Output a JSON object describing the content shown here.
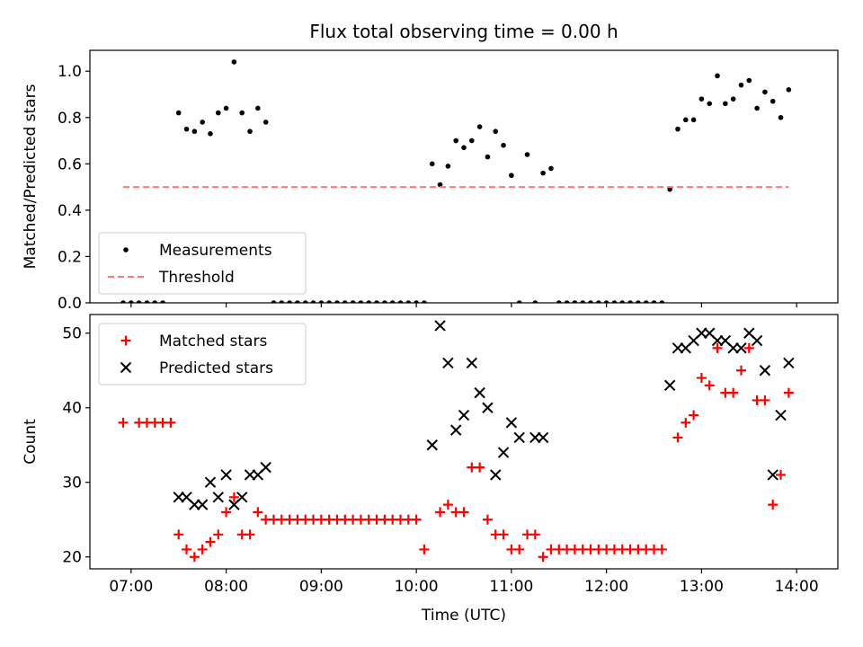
{
  "chart_data": [
    {
      "type": "scatter",
      "title": "Flux total observing time = 0.00 h",
      "xlabel": "",
      "ylabel": "Matched/Predicted stars",
      "ylim": [
        0,
        1.09
      ],
      "xlim": [
        "06:34",
        "14:26"
      ],
      "legend_position": "lower-left",
      "yticks": [
        "0.0",
        "0.2",
        "0.4",
        "0.6",
        "0.8",
        "1.0"
      ],
      "series": [
        {
          "name": "Measurements",
          "marker": "dot",
          "color": "#000000",
          "points": [
            [
              "06:55",
              0.0
            ],
            [
              "07:00",
              0.0
            ],
            [
              "07:05",
              0.0
            ],
            [
              "07:10",
              0.0
            ],
            [
              "07:15",
              0.0
            ],
            [
              "07:20",
              0.0
            ],
            [
              "07:30",
              0.82
            ],
            [
              "07:35",
              0.75
            ],
            [
              "07:40",
              0.74
            ],
            [
              "07:45",
              0.78
            ],
            [
              "07:50",
              0.73
            ],
            [
              "07:55",
              0.82
            ],
            [
              "08:00",
              0.84
            ],
            [
              "08:05",
              1.04
            ],
            [
              "08:10",
              0.82
            ],
            [
              "08:15",
              0.74
            ],
            [
              "08:20",
              0.84
            ],
            [
              "08:25",
              0.78
            ],
            [
              "08:30",
              0.0
            ],
            [
              "08:35",
              0.0
            ],
            [
              "08:40",
              0.0
            ],
            [
              "08:45",
              0.0
            ],
            [
              "08:50",
              0.0
            ],
            [
              "08:55",
              0.0
            ],
            [
              "09:00",
              0.0
            ],
            [
              "09:05",
              0.0
            ],
            [
              "09:10",
              0.0
            ],
            [
              "09:15",
              0.0
            ],
            [
              "09:20",
              0.0
            ],
            [
              "09:25",
              0.0
            ],
            [
              "09:30",
              0.0
            ],
            [
              "09:35",
              0.0
            ],
            [
              "09:40",
              0.0
            ],
            [
              "09:45",
              0.0
            ],
            [
              "09:50",
              0.0
            ],
            [
              "09:55",
              0.0
            ],
            [
              "10:00",
              0.0
            ],
            [
              "10:05",
              0.0
            ],
            [
              "10:10",
              0.6
            ],
            [
              "10:15",
              0.51
            ],
            [
              "10:20",
              0.59
            ],
            [
              "10:25",
              0.7
            ],
            [
              "10:30",
              0.67
            ],
            [
              "10:35",
              0.7
            ],
            [
              "10:40",
              0.76
            ],
            [
              "10:45",
              0.63
            ],
            [
              "10:50",
              0.74
            ],
            [
              "10:55",
              0.68
            ],
            [
              "11:00",
              0.55
            ],
            [
              "11:05",
              0.0
            ],
            [
              "11:10",
              0.64
            ],
            [
              "11:15",
              0.0
            ],
            [
              "11:20",
              0.56
            ],
            [
              "11:25",
              0.58
            ],
            [
              "11:30",
              0.0
            ],
            [
              "11:35",
              0.0
            ],
            [
              "11:40",
              0.0
            ],
            [
              "11:45",
              0.0
            ],
            [
              "11:50",
              0.0
            ],
            [
              "11:55",
              0.0
            ],
            [
              "12:00",
              0.0
            ],
            [
              "12:05",
              0.0
            ],
            [
              "12:10",
              0.0
            ],
            [
              "12:15",
              0.0
            ],
            [
              "12:20",
              0.0
            ],
            [
              "12:25",
              0.0
            ],
            [
              "12:30",
              0.0
            ],
            [
              "12:35",
              0.0
            ],
            [
              "12:40",
              0.49
            ],
            [
              "12:45",
              0.75
            ],
            [
              "12:50",
              0.79
            ],
            [
              "12:55",
              0.79
            ],
            [
              "13:00",
              0.88
            ],
            [
              "13:05",
              0.86
            ],
            [
              "13:10",
              0.98
            ],
            [
              "13:15",
              0.86
            ],
            [
              "13:20",
              0.88
            ],
            [
              "13:25",
              0.94
            ],
            [
              "13:30",
              0.96
            ],
            [
              "13:35",
              0.84
            ],
            [
              "13:40",
              0.91
            ],
            [
              "13:45",
              0.87
            ],
            [
              "13:50",
              0.8
            ],
            [
              "13:55",
              0.92
            ]
          ]
        },
        {
          "name": "Threshold",
          "line_style": "dashed",
          "color": "#ff7777",
          "x": [
            "06:55",
            "13:55"
          ],
          "y": [
            0.5,
            0.5
          ]
        }
      ]
    },
    {
      "type": "scatter",
      "title": "",
      "xlabel": "Time (UTC)",
      "ylabel": "Count",
      "ylim": [
        18.4,
        52.5
      ],
      "xlim": [
        "06:34",
        "14:26"
      ],
      "legend_position": "upper-left",
      "yticks": [
        "20",
        "30",
        "40",
        "50"
      ],
      "xticks": [
        "07:00",
        "08:00",
        "09:00",
        "10:00",
        "11:00",
        "12:00",
        "13:00",
        "14:00"
      ],
      "series": [
        {
          "name": "Matched stars",
          "marker": "plus",
          "color": "#ff0000",
          "points": [
            [
              "06:55",
              38
            ],
            [
              "07:05",
              38
            ],
            [
              "07:10",
              38
            ],
            [
              "07:15",
              38
            ],
            [
              "07:20",
              38
            ],
            [
              "07:25",
              38
            ],
            [
              "07:30",
              23
            ],
            [
              "07:35",
              21
            ],
            [
              "07:40",
              20
            ],
            [
              "07:45",
              21
            ],
            [
              "07:50",
              22
            ],
            [
              "07:55",
              23
            ],
            [
              "08:00",
              26
            ],
            [
              "08:05",
              28
            ],
            [
              "08:10",
              23
            ],
            [
              "08:15",
              23
            ],
            [
              "08:20",
              26
            ],
            [
              "08:25",
              25
            ],
            [
              "08:30",
              25
            ],
            [
              "08:35",
              25
            ],
            [
              "08:40",
              25
            ],
            [
              "08:45",
              25
            ],
            [
              "08:50",
              25
            ],
            [
              "08:55",
              25
            ],
            [
              "09:00",
              25
            ],
            [
              "09:05",
              25
            ],
            [
              "09:10",
              25
            ],
            [
              "09:15",
              25
            ],
            [
              "09:20",
              25
            ],
            [
              "09:25",
              25
            ],
            [
              "09:30",
              25
            ],
            [
              "09:35",
              25
            ],
            [
              "09:40",
              25
            ],
            [
              "09:45",
              25
            ],
            [
              "09:50",
              25
            ],
            [
              "09:55",
              25
            ],
            [
              "10:00",
              25
            ],
            [
              "10:05",
              21
            ],
            [
              "10:15",
              26
            ],
            [
              "10:20",
              27
            ],
            [
              "10:25",
              26
            ],
            [
              "10:30",
              26
            ],
            [
              "10:35",
              32
            ],
            [
              "10:40",
              32
            ],
            [
              "10:45",
              25
            ],
            [
              "10:50",
              23
            ],
            [
              "10:55",
              23
            ],
            [
              "11:00",
              21
            ],
            [
              "11:05",
              21
            ],
            [
              "11:10",
              23
            ],
            [
              "11:15",
              23
            ],
            [
              "11:20",
              20
            ],
            [
              "11:25",
              21
            ],
            [
              "11:30",
              21
            ],
            [
              "11:35",
              21
            ],
            [
              "11:40",
              21
            ],
            [
              "11:45",
              21
            ],
            [
              "11:50",
              21
            ],
            [
              "11:55",
              21
            ],
            [
              "12:00",
              21
            ],
            [
              "12:05",
              21
            ],
            [
              "12:10",
              21
            ],
            [
              "12:15",
              21
            ],
            [
              "12:20",
              21
            ],
            [
              "12:25",
              21
            ],
            [
              "12:30",
              21
            ],
            [
              "12:35",
              21
            ],
            [
              "12:45",
              36
            ],
            [
              "12:50",
              38
            ],
            [
              "12:55",
              39
            ],
            [
              "13:00",
              44
            ],
            [
              "13:05",
              43
            ],
            [
              "13:10",
              48
            ],
            [
              "13:15",
              42
            ],
            [
              "13:20",
              42
            ],
            [
              "13:25",
              45
            ],
            [
              "13:30",
              48
            ],
            [
              "13:35",
              41
            ],
            [
              "13:40",
              41
            ],
            [
              "13:45",
              27
            ],
            [
              "13:50",
              31
            ],
            [
              "13:55",
              42
            ]
          ]
        },
        {
          "name": "Predicted stars",
          "marker": "x",
          "color": "#000000",
          "points": [
            [
              "07:30",
              28
            ],
            [
              "07:35",
              28
            ],
            [
              "07:40",
              27
            ],
            [
              "07:45",
              27
            ],
            [
              "07:50",
              30
            ],
            [
              "07:55",
              28
            ],
            [
              "08:00",
              31
            ],
            [
              "08:05",
              27
            ],
            [
              "08:10",
              28
            ],
            [
              "08:15",
              31
            ],
            [
              "08:20",
              31
            ],
            [
              "08:25",
              32
            ],
            [
              "10:10",
              35
            ],
            [
              "10:15",
              51
            ],
            [
              "10:20",
              46
            ],
            [
              "10:25",
              37
            ],
            [
              "10:30",
              39
            ],
            [
              "10:35",
              46
            ],
            [
              "10:40",
              42
            ],
            [
              "10:45",
              40
            ],
            [
              "10:50",
              31
            ],
            [
              "10:55",
              34
            ],
            [
              "11:00",
              38
            ],
            [
              "11:05",
              36
            ],
            [
              "11:15",
              36
            ],
            [
              "11:20",
              36
            ],
            [
              "12:40",
              43
            ],
            [
              "12:45",
              48
            ],
            [
              "12:50",
              48
            ],
            [
              "12:55",
              49
            ],
            [
              "13:00",
              50
            ],
            [
              "13:05",
              50
            ],
            [
              "13:10",
              49
            ],
            [
              "13:15",
              49
            ],
            [
              "13:20",
              48
            ],
            [
              "13:25",
              48
            ],
            [
              "13:30",
              50
            ],
            [
              "13:35",
              49
            ],
            [
              "13:40",
              45
            ],
            [
              "13:45",
              31
            ],
            [
              "13:50",
              39
            ],
            [
              "13:55",
              46
            ]
          ]
        }
      ]
    }
  ]
}
